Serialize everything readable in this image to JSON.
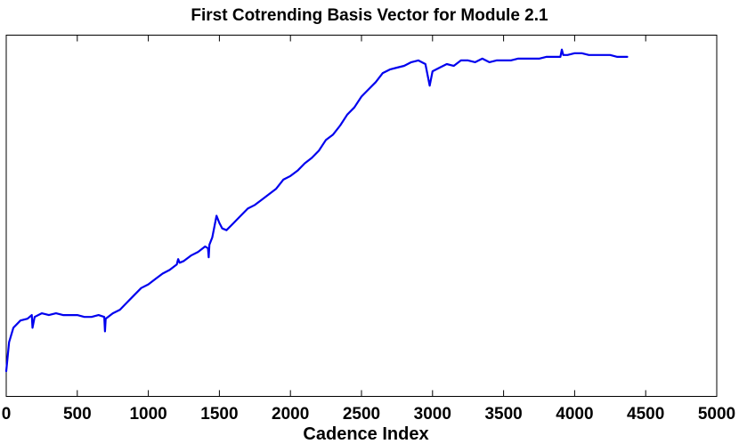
{
  "chart_data": {
    "type": "line",
    "title": "First Cotrending Basis Vector for Module 2.1",
    "xlabel": "Cadence Index",
    "ylabel": "",
    "xlim": [
      0,
      5000
    ],
    "ylim": [
      0,
      1
    ],
    "y_tick_labels_shown": false,
    "grid": false,
    "xticks": [
      0,
      500,
      1000,
      1500,
      2000,
      2500,
      3000,
      3500,
      4000,
      4500,
      5000
    ],
    "xtick_labels": [
      "0",
      "500",
      "1000",
      "1500",
      "2000",
      "2500",
      "3000",
      "3500",
      "4000",
      "4500",
      "5000"
    ],
    "series": [
      {
        "name": "",
        "color": "#0000ee",
        "x": [
          0,
          20,
          50,
          100,
          150,
          180,
          185,
          200,
          250,
          300,
          350,
          400,
          450,
          500,
          550,
          600,
          650,
          690,
          695,
          700,
          750,
          800,
          850,
          900,
          950,
          1000,
          1050,
          1100,
          1150,
          1200,
          1210,
          1220,
          1250,
          1300,
          1350,
          1400,
          1420,
          1425,
          1430,
          1450,
          1480,
          1500,
          1520,
          1550,
          1600,
          1650,
          1700,
          1750,
          1800,
          1850,
          1900,
          1950,
          2000,
          2050,
          2100,
          2150,
          2200,
          2250,
          2300,
          2350,
          2400,
          2450,
          2500,
          2550,
          2600,
          2650,
          2700,
          2750,
          2800,
          2850,
          2900,
          2950,
          2980,
          3000,
          3050,
          3100,
          3150,
          3200,
          3250,
          3300,
          3350,
          3400,
          3450,
          3500,
          3550,
          3600,
          3650,
          3700,
          3750,
          3800,
          3850,
          3900,
          3910,
          3920,
          3950,
          4000,
          4050,
          4100,
          4150,
          4200,
          4250,
          4300,
          4350,
          4370
        ],
        "values": [
          0.07,
          0.15,
          0.19,
          0.21,
          0.215,
          0.225,
          0.19,
          0.22,
          0.23,
          0.225,
          0.23,
          0.225,
          0.225,
          0.225,
          0.22,
          0.22,
          0.225,
          0.22,
          0.18,
          0.215,
          0.23,
          0.24,
          0.26,
          0.28,
          0.3,
          0.31,
          0.325,
          0.34,
          0.35,
          0.365,
          0.38,
          0.37,
          0.375,
          0.39,
          0.4,
          0.415,
          0.41,
          0.385,
          0.42,
          0.44,
          0.5,
          0.48,
          0.465,
          0.46,
          0.48,
          0.5,
          0.52,
          0.53,
          0.545,
          0.56,
          0.575,
          0.6,
          0.61,
          0.625,
          0.645,
          0.66,
          0.68,
          0.71,
          0.725,
          0.75,
          0.78,
          0.8,
          0.83,
          0.85,
          0.87,
          0.895,
          0.905,
          0.91,
          0.915,
          0.925,
          0.93,
          0.92,
          0.86,
          0.9,
          0.91,
          0.92,
          0.915,
          0.93,
          0.93,
          0.925,
          0.935,
          0.925,
          0.93,
          0.93,
          0.93,
          0.935,
          0.935,
          0.935,
          0.935,
          0.94,
          0.94,
          0.94,
          0.96,
          0.945,
          0.945,
          0.95,
          0.95,
          0.945,
          0.945,
          0.945,
          0.945,
          0.94,
          0.94,
          0.94
        ]
      }
    ]
  }
}
